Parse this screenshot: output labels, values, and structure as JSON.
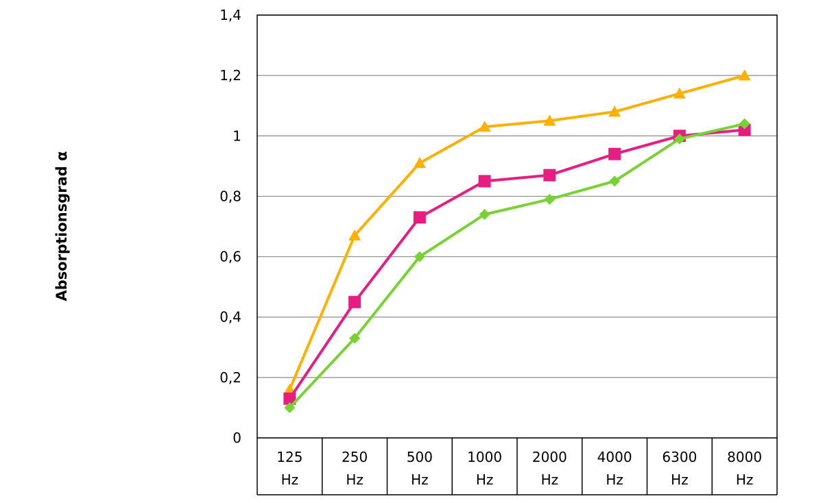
{
  "chart_data": {
    "type": "line",
    "ylabel": "Absorptionsgrad α",
    "xlabel": "",
    "ylim": [
      0,
      1.4
    ],
    "yticks": [
      "0",
      "0,2",
      "0,4",
      "0,6",
      "0,8",
      "1",
      "1,2",
      "1,4"
    ],
    "ytick_values": [
      0,
      0.2,
      0.4,
      0.6,
      0.8,
      1.0,
      1.2,
      1.4
    ],
    "grid": true,
    "categories": [
      {
        "value": "125",
        "unit": "Hz"
      },
      {
        "value": "250",
        "unit": "Hz"
      },
      {
        "value": "500",
        "unit": "Hz"
      },
      {
        "value": "1000",
        "unit": "Hz"
      },
      {
        "value": "2000",
        "unit": "Hz"
      },
      {
        "value": "4000",
        "unit": "Hz"
      },
      {
        "value": "6300",
        "unit": "Hz"
      },
      {
        "value": "8000",
        "unit": "Hz"
      }
    ],
    "series": [
      {
        "marker": "triangle",
        "color": "#ffb000",
        "values": [
          0.16,
          0.67,
          0.91,
          1.03,
          1.05,
          1.08,
          1.14,
          1.2
        ]
      },
      {
        "marker": "square",
        "color": "#e61e82",
        "values": [
          0.13,
          0.45,
          0.73,
          0.85,
          0.87,
          0.94,
          1.0,
          1.02
        ]
      },
      {
        "marker": "diamond",
        "color": "#78d232",
        "values": [
          0.1,
          0.33,
          0.6,
          0.74,
          0.79,
          0.85,
          0.99,
          1.04
        ]
      }
    ]
  }
}
